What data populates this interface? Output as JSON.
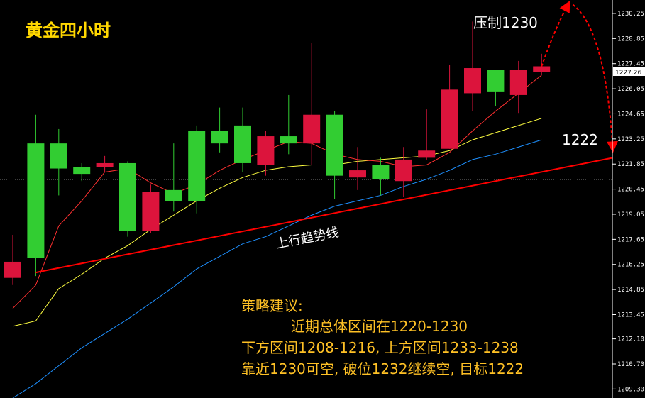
{
  "title": "黄金四小时",
  "annotations": {
    "resistance": "压制1230",
    "target": "1222",
    "trendline": "上行趋势线"
  },
  "strategy": {
    "heading": "策略建议:",
    "lines": [
      "近期总体区间在1220-1230",
      "下方区间1208-1216, 上方区间1233-1238",
      "靠近1230可空, 破位1232继续空, 目标1222"
    ]
  },
  "current_price": "1227.26",
  "colors": {
    "background": "#000000",
    "up": "#32CD32",
    "down": "#DC143C",
    "title": "#FFD700",
    "strategy_text": "#FFC125",
    "trendline": "#FF0000",
    "ma_fast": "#FF3030",
    "ma_mid": "#FFFF40",
    "ma_slow": "#1E90FF",
    "price_line": "#A0A0A0",
    "axis": "#FFFFFF"
  },
  "chart_data": {
    "type": "candlestick",
    "y_axis": {
      "ticks": [
        "1230.25",
        "1228.85",
        "1227.45",
        "1226.05",
        "1224.65",
        "1223.25",
        "1221.85",
        "1220.45",
        "1219.05",
        "1217.65",
        "1216.25",
        "1214.85",
        "1213.45",
        "1212.10",
        "1210.70",
        "1209.30"
      ],
      "ylim": [
        1208.8,
        1231.0
      ]
    },
    "candles": [
      {
        "o": 1216.4,
        "h": 1217.9,
        "l": 1215.1,
        "c": 1215.5
      },
      {
        "o": 1216.6,
        "h": 1224.6,
        "l": 1215.6,
        "c": 1223.0
      },
      {
        "o": 1221.6,
        "h": 1223.8,
        "l": 1220.1,
        "c": 1223.0
      },
      {
        "o": 1221.3,
        "h": 1221.9,
        "l": 1220.9,
        "c": 1221.7
      },
      {
        "o": 1221.9,
        "h": 1222.3,
        "l": 1221.4,
        "c": 1221.7
      },
      {
        "o": 1218.1,
        "h": 1222.0,
        "l": 1217.8,
        "c": 1221.9
      },
      {
        "o": 1220.3,
        "h": 1220.7,
        "l": 1218.0,
        "c": 1218.1
      },
      {
        "o": 1219.8,
        "h": 1223.0,
        "l": 1219.2,
        "c": 1220.4
      },
      {
        "o": 1219.8,
        "h": 1224.0,
        "l": 1219.1,
        "c": 1223.7
      },
      {
        "o": 1223.0,
        "h": 1225.0,
        "l": 1222.5,
        "c": 1223.7
      },
      {
        "o": 1221.9,
        "h": 1225.0,
        "l": 1221.4,
        "c": 1224.0
      },
      {
        "o": 1223.4,
        "h": 1223.7,
        "l": 1221.2,
        "c": 1221.8
      },
      {
        "o": 1223.0,
        "h": 1225.7,
        "l": 1222.4,
        "c": 1223.4
      },
      {
        "o": 1224.6,
        "h": 1228.6,
        "l": 1221.8,
        "c": 1223.0
      },
      {
        "o": 1221.2,
        "h": 1224.8,
        "l": 1219.9,
        "c": 1224.6
      },
      {
        "o": 1221.5,
        "h": 1222.8,
        "l": 1220.4,
        "c": 1221.1
      },
      {
        "o": 1221.0,
        "h": 1222.2,
        "l": 1220.1,
        "c": 1221.8
      },
      {
        "o": 1222.1,
        "h": 1222.8,
        "l": 1220.0,
        "c": 1220.9
      },
      {
        "o": 1222.6,
        "h": 1224.9,
        "l": 1222.1,
        "c": 1222.2
      },
      {
        "o": 1226.0,
        "h": 1227.4,
        "l": 1222.7,
        "c": 1222.7
      },
      {
        "o": 1227.2,
        "h": 1229.8,
        "l": 1224.8,
        "c": 1225.8
      },
      {
        "o": 1225.9,
        "h": 1227.1,
        "l": 1225.1,
        "c": 1227.1
      },
      {
        "o": 1227.1,
        "h": 1227.6,
        "l": 1224.7,
        "c": 1225.7
      },
      {
        "o": 1227.3,
        "h": 1228.0,
        "l": 1226.8,
        "c": 1227.0
      }
    ],
    "ma_fast": [
      1213.8,
      1215.1,
      1218.4,
      1219.8,
      1221.4,
      1221.6,
      1220.8,
      1220.2,
      1220.7,
      1221.5,
      1222.1,
      1222.6,
      1223.1,
      1223.0,
      1222.4,
      1222.1,
      1222.0,
      1221.7,
      1221.8,
      1222.5,
      1223.7,
      1224.8,
      1225.8,
      1226.8
    ],
    "ma_mid": [
      1212.8,
      1213.1,
      1214.9,
      1215.7,
      1216.6,
      1217.3,
      1218.2,
      1219.0,
      1219.8,
      1220.5,
      1221.1,
      1221.5,
      1221.7,
      1221.8,
      1221.8,
      1222.0,
      1222.1,
      1222.2,
      1222.3,
      1222.6,
      1223.2,
      1223.6,
      1224.0,
      1224.4
    ],
    "ma_slow": [
      1208.8,
      1209.6,
      1210.6,
      1211.6,
      1212.4,
      1213.2,
      1214.1,
      1215.0,
      1216.0,
      1216.7,
      1217.4,
      1217.8,
      1218.4,
      1219.0,
      1219.5,
      1219.8,
      1220.1,
      1220.6,
      1221.0,
      1221.5,
      1222.1,
      1222.4,
      1222.8,
      1223.2
    ],
    "trendline": {
      "from": {
        "i": 1,
        "y": 1215.8
      },
      "to": {
        "i": 26.1,
        "y": 1222.2
      }
    },
    "price_line": 1227.26,
    "dotted_levels": [
      1221.0,
      1219.9
    ],
    "projection": {
      "start": {
        "i": 23,
        "y": 1227.3
      },
      "peak": {
        "i": 24.3,
        "y": 1230.9
      },
      "end": {
        "i": 26.1,
        "y": 1222.4
      }
    }
  }
}
